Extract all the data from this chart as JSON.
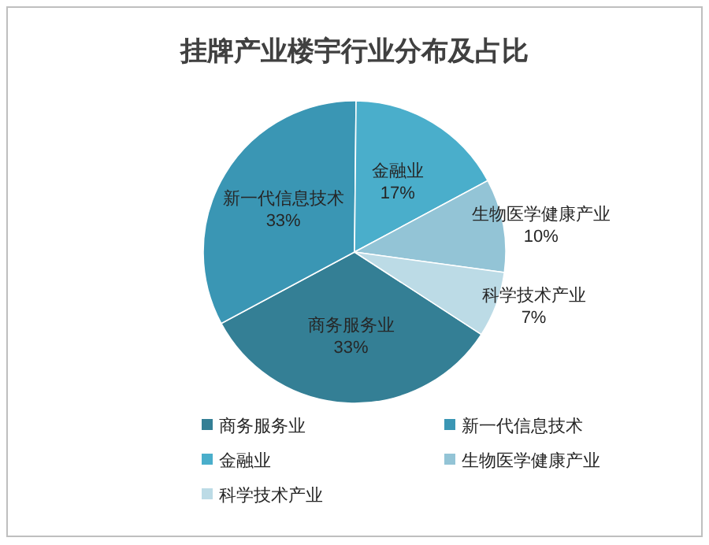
{
  "chart_data": {
    "type": "pie",
    "title": "挂牌产业楼宇行业分布及占比",
    "categories": [
      "商务服务业",
      "新一代信息技术",
      "金融业",
      "生物医学健康产业",
      "科学技术产业"
    ],
    "values": [
      33,
      33,
      17,
      10,
      7
    ],
    "colors": [
      "#347f95",
      "#3a96b4",
      "#4aaecb",
      "#93c4d6",
      "#bcdbe6"
    ],
    "value_labels": [
      "33%",
      "33%",
      "17%",
      "10%",
      "7%"
    ],
    "legend": "bottom"
  }
}
